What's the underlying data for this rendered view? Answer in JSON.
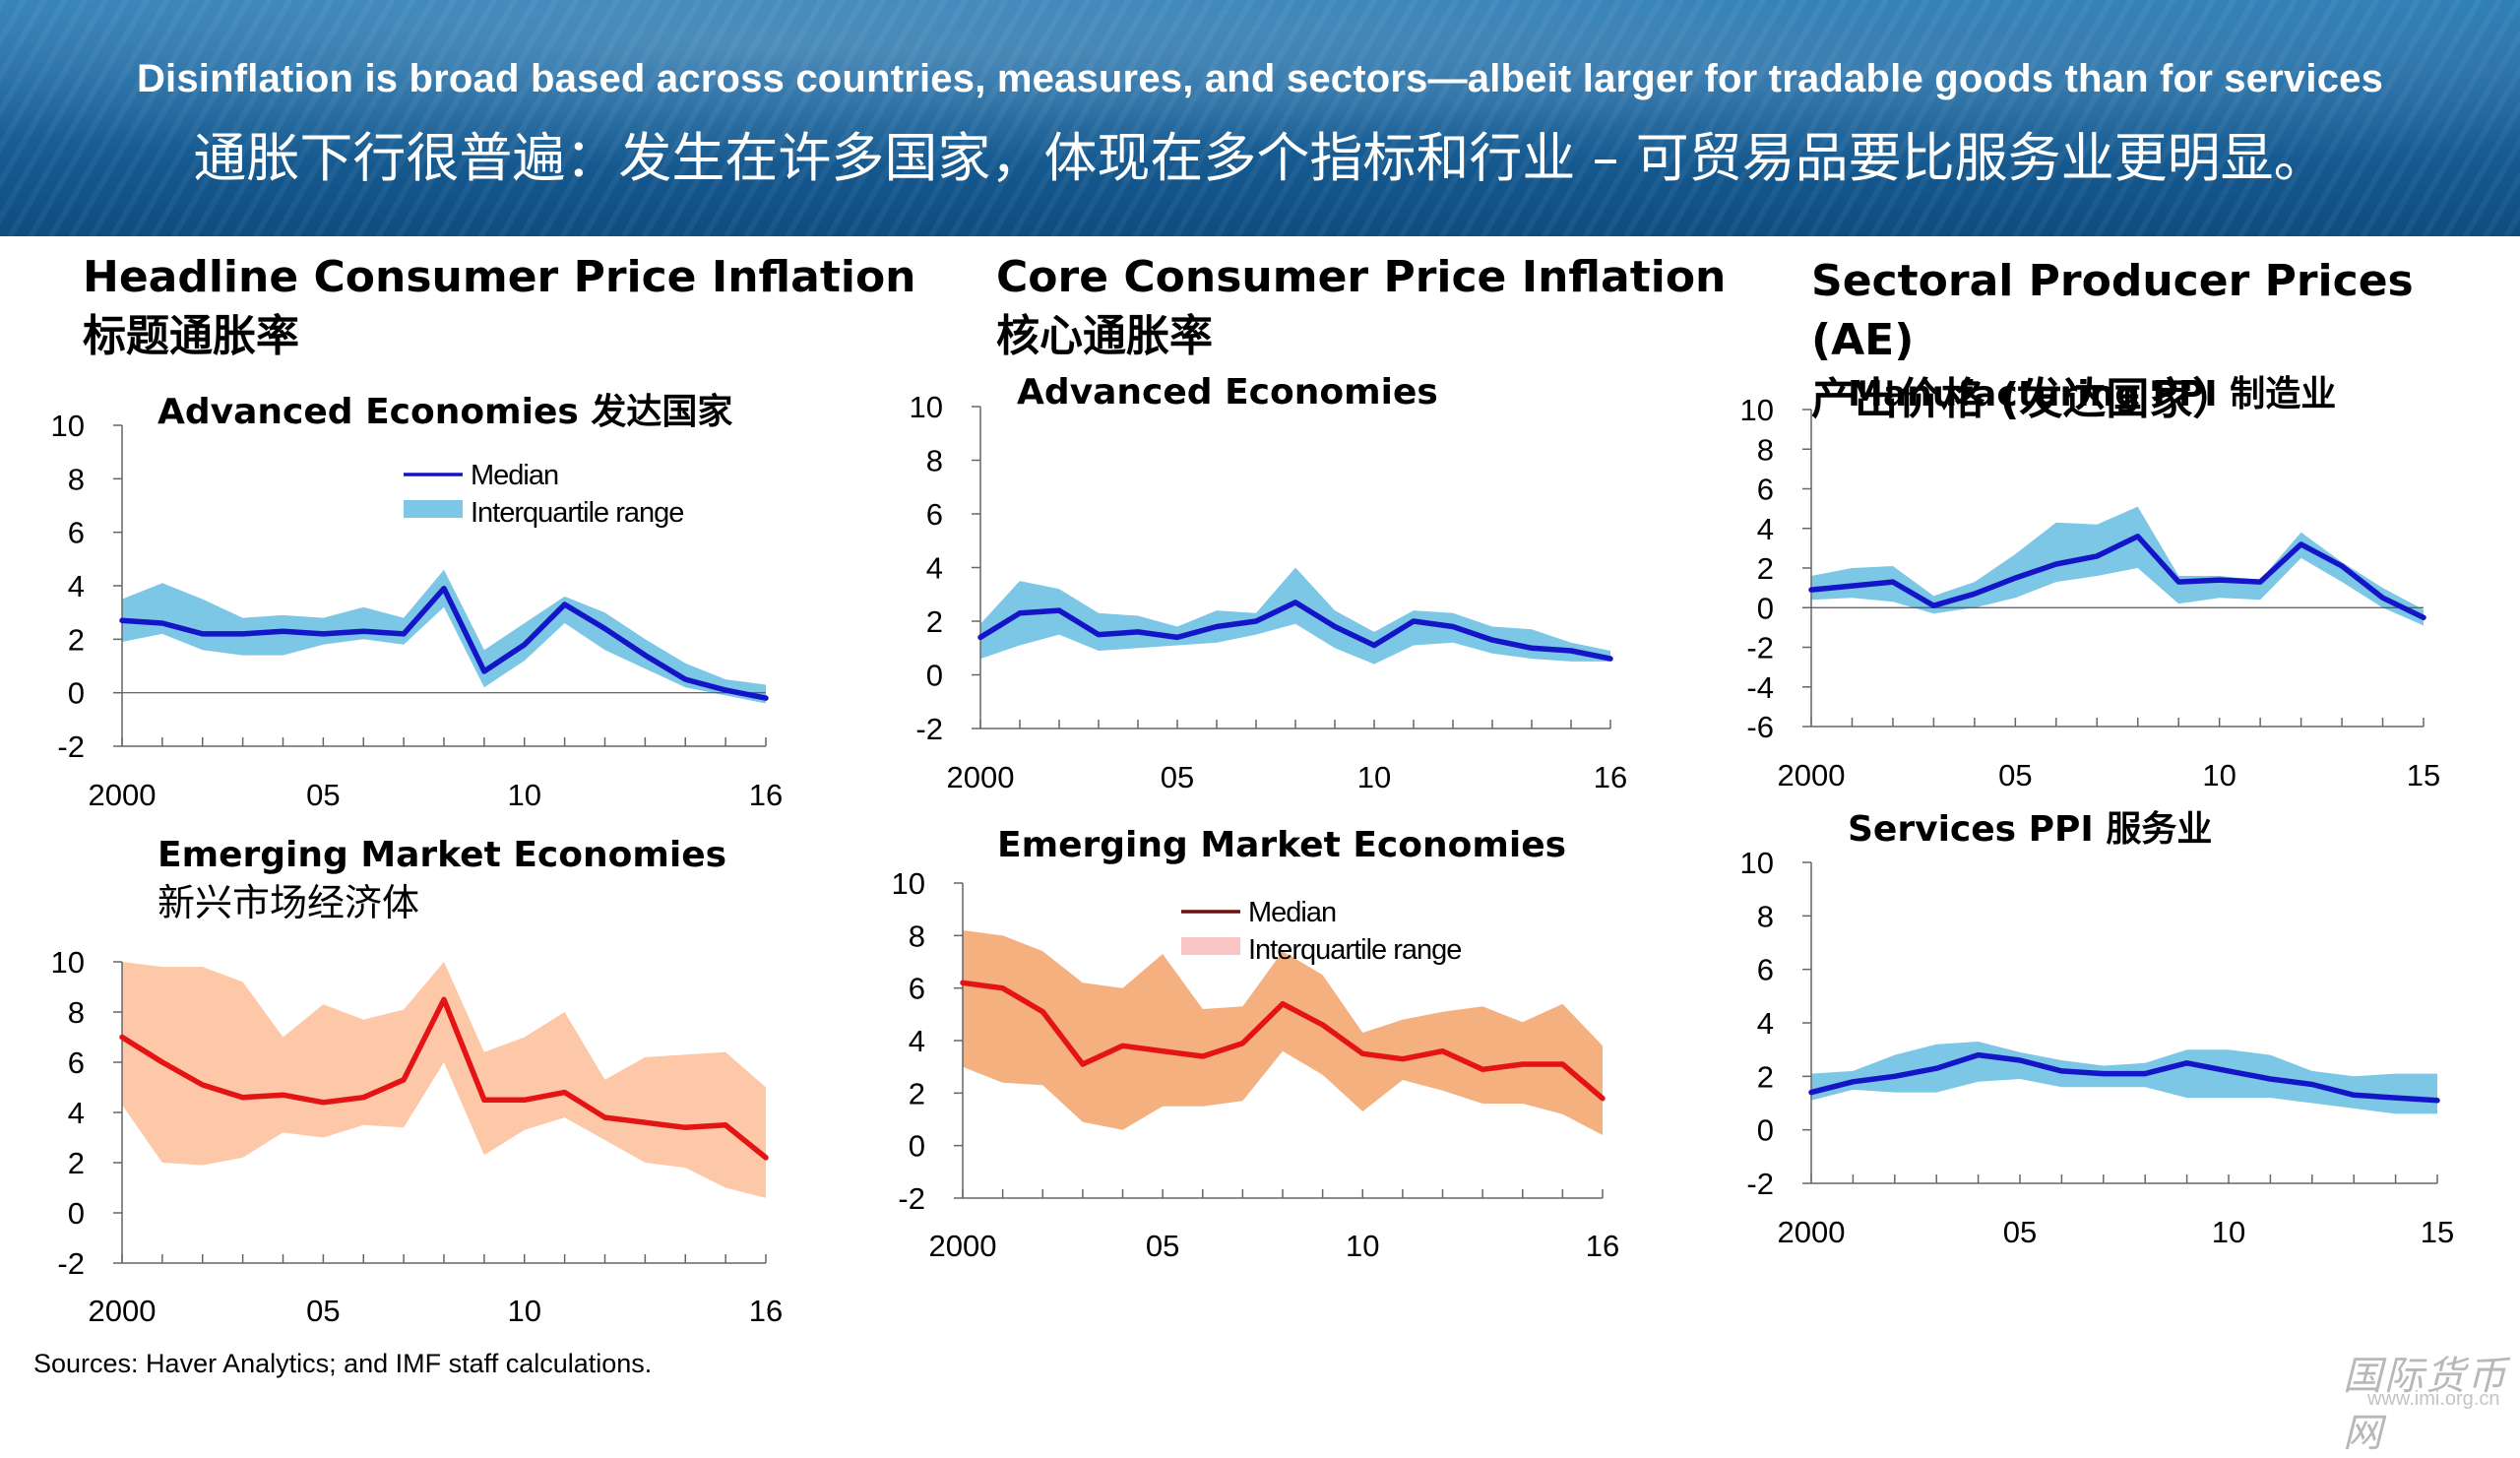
{
  "header": {
    "title_en": "Disinflation is broad based across countries, measures, and sectors—albeit larger for tradable goods than for services",
    "title_cn": "通胀下行很普遍：发生在许多国家，体现在多个指标和行业 – 可贸易品要比服务业更明显。"
  },
  "sections": [
    {
      "title_en": "Headline Consumer Price Inflation",
      "title_cn": "标题通胀率"
    },
    {
      "title_en": "Core Consumer Price Inflation",
      "title_cn": "核心通胀率"
    },
    {
      "title_en": "Sectoral Producer Prices (AE)",
      "title_cn": "产出价格 (发达国家）"
    }
  ],
  "footnote": "Sources: Haver Analytics; and IMF staff calculations.",
  "watermark": {
    "main": "国际货币网",
    "sub": "www.imi.org.cn"
  },
  "colors": {
    "blue_line": "#1515c8",
    "blue_band": "#7cc6e6",
    "red_line": "#e41414",
    "red_band_headline": "#fcc8a8",
    "red_band_core": "#f5b080"
  },
  "chart_data": [
    {
      "id": "headline-ae",
      "type": "area",
      "title": "Advanced Economies 发达国家",
      "xlim": [
        2000,
        2016
      ],
      "ylim": [
        -2,
        10
      ],
      "yticks": [
        -2,
        0,
        2,
        4,
        6,
        8,
        10
      ],
      "xticks": [
        2000,
        2005,
        2010,
        2016
      ],
      "xticklabels": [
        "2000",
        "05",
        "10",
        "16"
      ],
      "legend": {
        "position": "top-right",
        "entries": [
          "Median",
          "Interquartile range"
        ]
      },
      "zero_line": true,
      "x": [
        2000,
        2001,
        2002,
        2003,
        2004,
        2005,
        2006,
        2007,
        2008,
        2009,
        2010,
        2011,
        2012,
        2013,
        2014,
        2015,
        2016
      ],
      "series": [
        {
          "name": "Median",
          "values": [
            2.7,
            2.6,
            2.2,
            2.2,
            2.3,
            2.2,
            2.3,
            2.2,
            3.9,
            0.8,
            1.8,
            3.3,
            2.4,
            1.4,
            0.5,
            0.1,
            -0.2
          ]
        },
        {
          "name": "Interquartile range",
          "low": [
            1.9,
            2.2,
            1.6,
            1.4,
            1.4,
            1.8,
            2.0,
            1.8,
            3.2,
            0.2,
            1.2,
            2.6,
            1.6,
            0.9,
            0.2,
            -0.1,
            -0.4
          ],
          "high": [
            3.5,
            4.1,
            3.5,
            2.8,
            2.9,
            2.8,
            3.2,
            2.8,
            4.6,
            1.6,
            2.6,
            3.6,
            3.0,
            2.0,
            1.1,
            0.5,
            0.3
          ]
        }
      ]
    },
    {
      "id": "headline-em",
      "type": "area",
      "title": "Emerging Market Economies",
      "title_cn": "新兴市场经济体",
      "xlim": [
        2000,
        2016
      ],
      "ylim": [
        -2,
        10
      ],
      "yticks": [
        -2,
        0,
        2,
        4,
        6,
        8,
        10
      ],
      "xticks": [
        2000,
        2005,
        2010,
        2016
      ],
      "xticklabels": [
        "2000",
        "05",
        "10",
        "16"
      ],
      "zero_line": false,
      "x": [
        2000,
        2001,
        2002,
        2003,
        2004,
        2005,
        2006,
        2007,
        2008,
        2009,
        2010,
        2011,
        2012,
        2013,
        2014,
        2015,
        2016
      ],
      "series": [
        {
          "name": "Median",
          "values": [
            7.0,
            6.0,
            5.1,
            4.6,
            4.7,
            4.4,
            4.6,
            5.3,
            8.5,
            4.5,
            4.5,
            4.8,
            3.8,
            3.6,
            3.4,
            3.5,
            2.2
          ]
        },
        {
          "name": "Interquartile range",
          "low": [
            4.3,
            2.0,
            1.9,
            2.2,
            3.2,
            3.0,
            3.5,
            3.4,
            6.0,
            2.3,
            3.3,
            3.8,
            2.9,
            2.0,
            1.8,
            1.0,
            0.6
          ],
          "high": [
            10.0,
            9.8,
            9.8,
            9.2,
            7.0,
            8.3,
            7.7,
            8.1,
            10.0,
            6.4,
            7.0,
            8.0,
            5.3,
            6.2,
            6.3,
            6.4,
            5.0
          ]
        }
      ]
    },
    {
      "id": "core-ae",
      "type": "area",
      "title": "Advanced Economies",
      "xlim": [
        2000,
        2016
      ],
      "ylim": [
        -2,
        10
      ],
      "yticks": [
        -2,
        0,
        2,
        4,
        6,
        8,
        10
      ],
      "xticks": [
        2000,
        2005,
        2010,
        2016
      ],
      "xticklabels": [
        "2000",
        "05",
        "10",
        "16"
      ],
      "zero_line": false,
      "x": [
        2000,
        2001,
        2002,
        2003,
        2004,
        2005,
        2006,
        2007,
        2008,
        2009,
        2010,
        2011,
        2012,
        2013,
        2014,
        2015,
        2016
      ],
      "series": [
        {
          "name": "Median",
          "values": [
            1.4,
            2.3,
            2.4,
            1.5,
            1.6,
            1.4,
            1.8,
            2.0,
            2.7,
            1.8,
            1.1,
            2.0,
            1.8,
            1.3,
            1.0,
            0.9,
            0.6
          ]
        },
        {
          "name": "Interquartile range",
          "low": [
            0.6,
            1.1,
            1.5,
            0.9,
            1.0,
            1.1,
            1.2,
            1.5,
            1.9,
            1.0,
            0.4,
            1.1,
            1.2,
            0.8,
            0.6,
            0.5,
            0.5
          ],
          "high": [
            1.9,
            3.5,
            3.2,
            2.3,
            2.2,
            1.8,
            2.4,
            2.3,
            4.0,
            2.4,
            1.6,
            2.4,
            2.3,
            1.8,
            1.7,
            1.2,
            0.9
          ]
        }
      ]
    },
    {
      "id": "core-em",
      "type": "area",
      "title": "Emerging Market Economies",
      "xlim": [
        2000,
        2016
      ],
      "ylim": [
        -2,
        10
      ],
      "yticks": [
        -2,
        0,
        2,
        4,
        6,
        8,
        10
      ],
      "xticks": [
        2000,
        2005,
        2010,
        2016
      ],
      "xticklabels": [
        "2000",
        "05",
        "10",
        "16"
      ],
      "legend": {
        "position": "top-right",
        "entries": [
          "Median",
          "Interquartile range"
        ]
      },
      "zero_line": false,
      "x": [
        2000,
        2001,
        2002,
        2003,
        2004,
        2005,
        2006,
        2007,
        2008,
        2009,
        2010,
        2011,
        2012,
        2013,
        2014,
        2015,
        2016
      ],
      "series": [
        {
          "name": "Median",
          "values": [
            6.2,
            6.0,
            5.1,
            3.1,
            3.8,
            3.6,
            3.4,
            3.9,
            5.4,
            4.6,
            3.5,
            3.3,
            3.6,
            2.9,
            3.1,
            3.1,
            1.8
          ]
        },
        {
          "name": "Interquartile range",
          "low": [
            3.0,
            2.4,
            2.3,
            0.9,
            0.6,
            1.5,
            1.5,
            1.7,
            3.6,
            2.7,
            1.3,
            2.5,
            2.1,
            1.6,
            1.6,
            1.2,
            0.4
          ],
          "high": [
            8.2,
            8.0,
            7.4,
            6.2,
            6.0,
            7.3,
            5.2,
            5.3,
            7.4,
            6.5,
            4.3,
            4.8,
            5.1,
            5.3,
            4.7,
            5.4,
            3.8
          ]
        }
      ]
    },
    {
      "id": "ppi-mfg",
      "type": "area",
      "title": "Manufacturing PPI 制造业",
      "xlim": [
        2000,
        2015
      ],
      "ylim": [
        -6,
        10
      ],
      "yticks": [
        -6,
        -4,
        -2,
        0,
        2,
        4,
        6,
        8,
        10
      ],
      "xticks": [
        2000,
        2005,
        2010,
        2015
      ],
      "xticklabels": [
        "2000",
        "05",
        "10",
        "15"
      ],
      "zero_line": true,
      "x": [
        2000,
        2001,
        2002,
        2003,
        2004,
        2005,
        2006,
        2007,
        2008,
        2009,
        2010,
        2011,
        2012,
        2013,
        2014,
        2015
      ],
      "series": [
        {
          "name": "Median",
          "values": [
            0.9,
            1.1,
            1.3,
            0.1,
            0.7,
            1.5,
            2.2,
            2.6,
            3.6,
            1.3,
            1.4,
            1.3,
            3.2,
            2.1,
            0.5,
            -0.5
          ]
        },
        {
          "name": "Interquartile range",
          "low": [
            0.4,
            0.5,
            0.3,
            -0.3,
            0.0,
            0.5,
            1.3,
            1.6,
            2.0,
            0.2,
            0.5,
            0.4,
            2.5,
            1.3,
            0.0,
            -0.9
          ],
          "high": [
            1.6,
            2.0,
            2.1,
            0.6,
            1.3,
            2.7,
            4.3,
            4.2,
            5.1,
            1.6,
            1.6,
            1.4,
            3.8,
            2.3,
            1.0,
            -0.1
          ]
        }
      ]
    },
    {
      "id": "ppi-services",
      "type": "area",
      "title": "Services PPI 服务业",
      "xlim": [
        2000,
        2015
      ],
      "ylim": [
        -2,
        10
      ],
      "yticks": [
        -2,
        0,
        2,
        4,
        6,
        8,
        10
      ],
      "xticks": [
        2000,
        2005,
        2010,
        2015
      ],
      "xticklabels": [
        "2000",
        "05",
        "10",
        "15"
      ],
      "zero_line": false,
      "x": [
        2000,
        2001,
        2002,
        2003,
        2004,
        2005,
        2006,
        2007,
        2008,
        2009,
        2010,
        2011,
        2012,
        2013,
        2014,
        2015
      ],
      "series": [
        {
          "name": "Median",
          "values": [
            1.4,
            1.8,
            2.0,
            2.3,
            2.8,
            2.6,
            2.2,
            2.1,
            2.1,
            2.5,
            2.2,
            1.9,
            1.7,
            1.3,
            1.2,
            1.1
          ]
        },
        {
          "name": "Interquartile range",
          "low": [
            1.1,
            1.5,
            1.4,
            1.4,
            1.8,
            1.9,
            1.6,
            1.6,
            1.6,
            1.2,
            1.2,
            1.2,
            1.0,
            0.8,
            0.6,
            0.6
          ],
          "high": [
            2.1,
            2.2,
            2.8,
            3.2,
            3.3,
            2.9,
            2.6,
            2.4,
            2.5,
            3.0,
            3.0,
            2.8,
            2.2,
            2.0,
            2.1,
            2.1
          ]
        }
      ]
    }
  ]
}
